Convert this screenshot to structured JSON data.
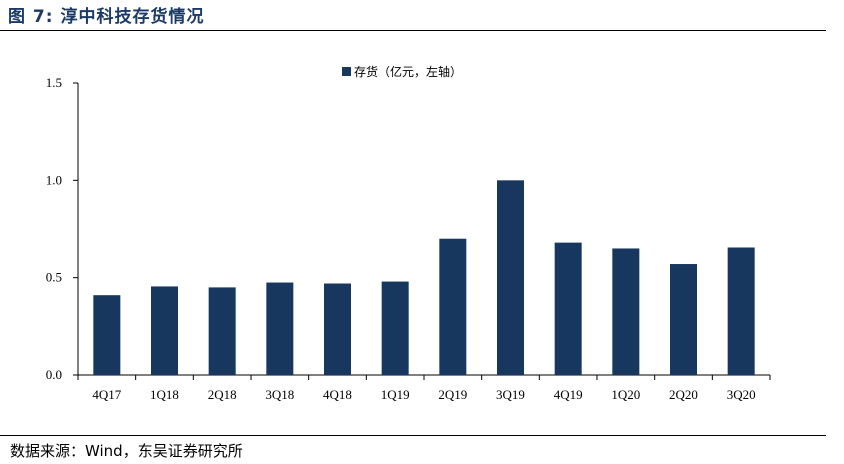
{
  "title": "图 7:  淳中科技存货情况",
  "source": "数据来源：Wind，东吴证券研究所",
  "chart_data": {
    "type": "bar",
    "categories": [
      "4Q17",
      "1Q18",
      "2Q18",
      "3Q18",
      "4Q18",
      "1Q19",
      "2Q19",
      "3Q19",
      "4Q19",
      "1Q20",
      "2Q20",
      "3Q20"
    ],
    "series": [
      {
        "name": "存货（亿元，左轴）",
        "values": [
          0.41,
          0.455,
          0.45,
          0.475,
          0.47,
          0.48,
          0.7,
          1.0,
          0.68,
          0.65,
          0.57,
          0.655
        ],
        "color": "#17375e"
      }
    ],
    "ylim": [
      0,
      1.5
    ],
    "yticks": [
      "0.0",
      "0.5",
      "1.0",
      "1.5"
    ],
    "legend_position": "top-center",
    "grid": false
  }
}
